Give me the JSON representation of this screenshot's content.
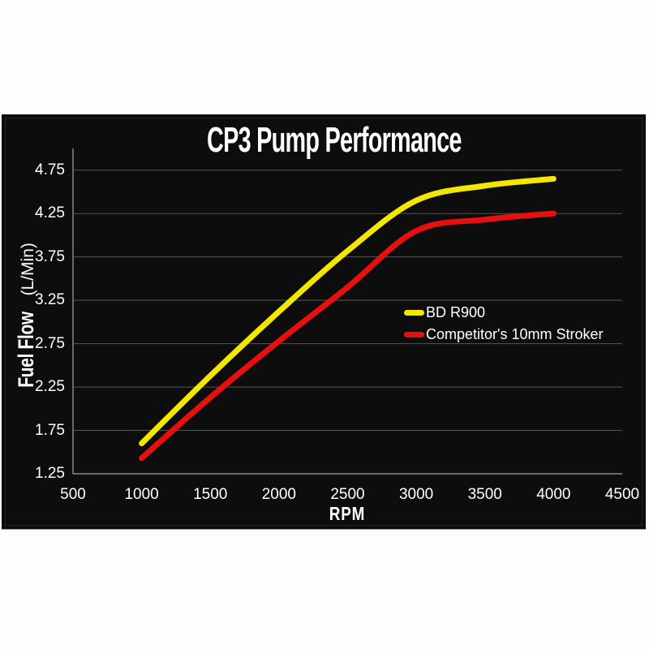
{
  "chart_data": {
    "type": "line",
    "title": "CP3 Pump Performance",
    "xlabel": "RPM",
    "ylabel": "Fuel Flow (L/Min)",
    "ylabel_parts": {
      "bold": "Fuel Flow",
      "regular": "(L/Min)"
    },
    "x": [
      1000,
      1500,
      2000,
      2500,
      3000,
      3500,
      4000
    ],
    "series": [
      {
        "name": "BD R900",
        "color": "#f3e600",
        "values": [
          1.6,
          2.38,
          3.12,
          3.82,
          4.4,
          4.57,
          4.65
        ]
      },
      {
        "name": "Competitor's 10mm Stroker",
        "color": "#e8100e",
        "values": [
          1.43,
          2.13,
          2.78,
          3.4,
          4.05,
          4.18,
          4.25
        ]
      }
    ],
    "xlim": [
      500,
      4500
    ],
    "ylim": [
      1.25,
      5.0
    ],
    "x_ticks": [
      500,
      1000,
      1500,
      2000,
      2500,
      3000,
      3500,
      4000,
      4500
    ],
    "y_ticks": [
      1.25,
      1.75,
      2.25,
      2.75,
      3.25,
      3.75,
      4.25,
      4.75
    ],
    "grid": "horizontal-only",
    "legend_position": "middle-right",
    "colors": {
      "panel_background": "#0d0d0d",
      "page_background": "#fdfdfd",
      "gridline": "#555555",
      "axis_line": "#8a8a8a",
      "text": "#ffffff"
    }
  }
}
